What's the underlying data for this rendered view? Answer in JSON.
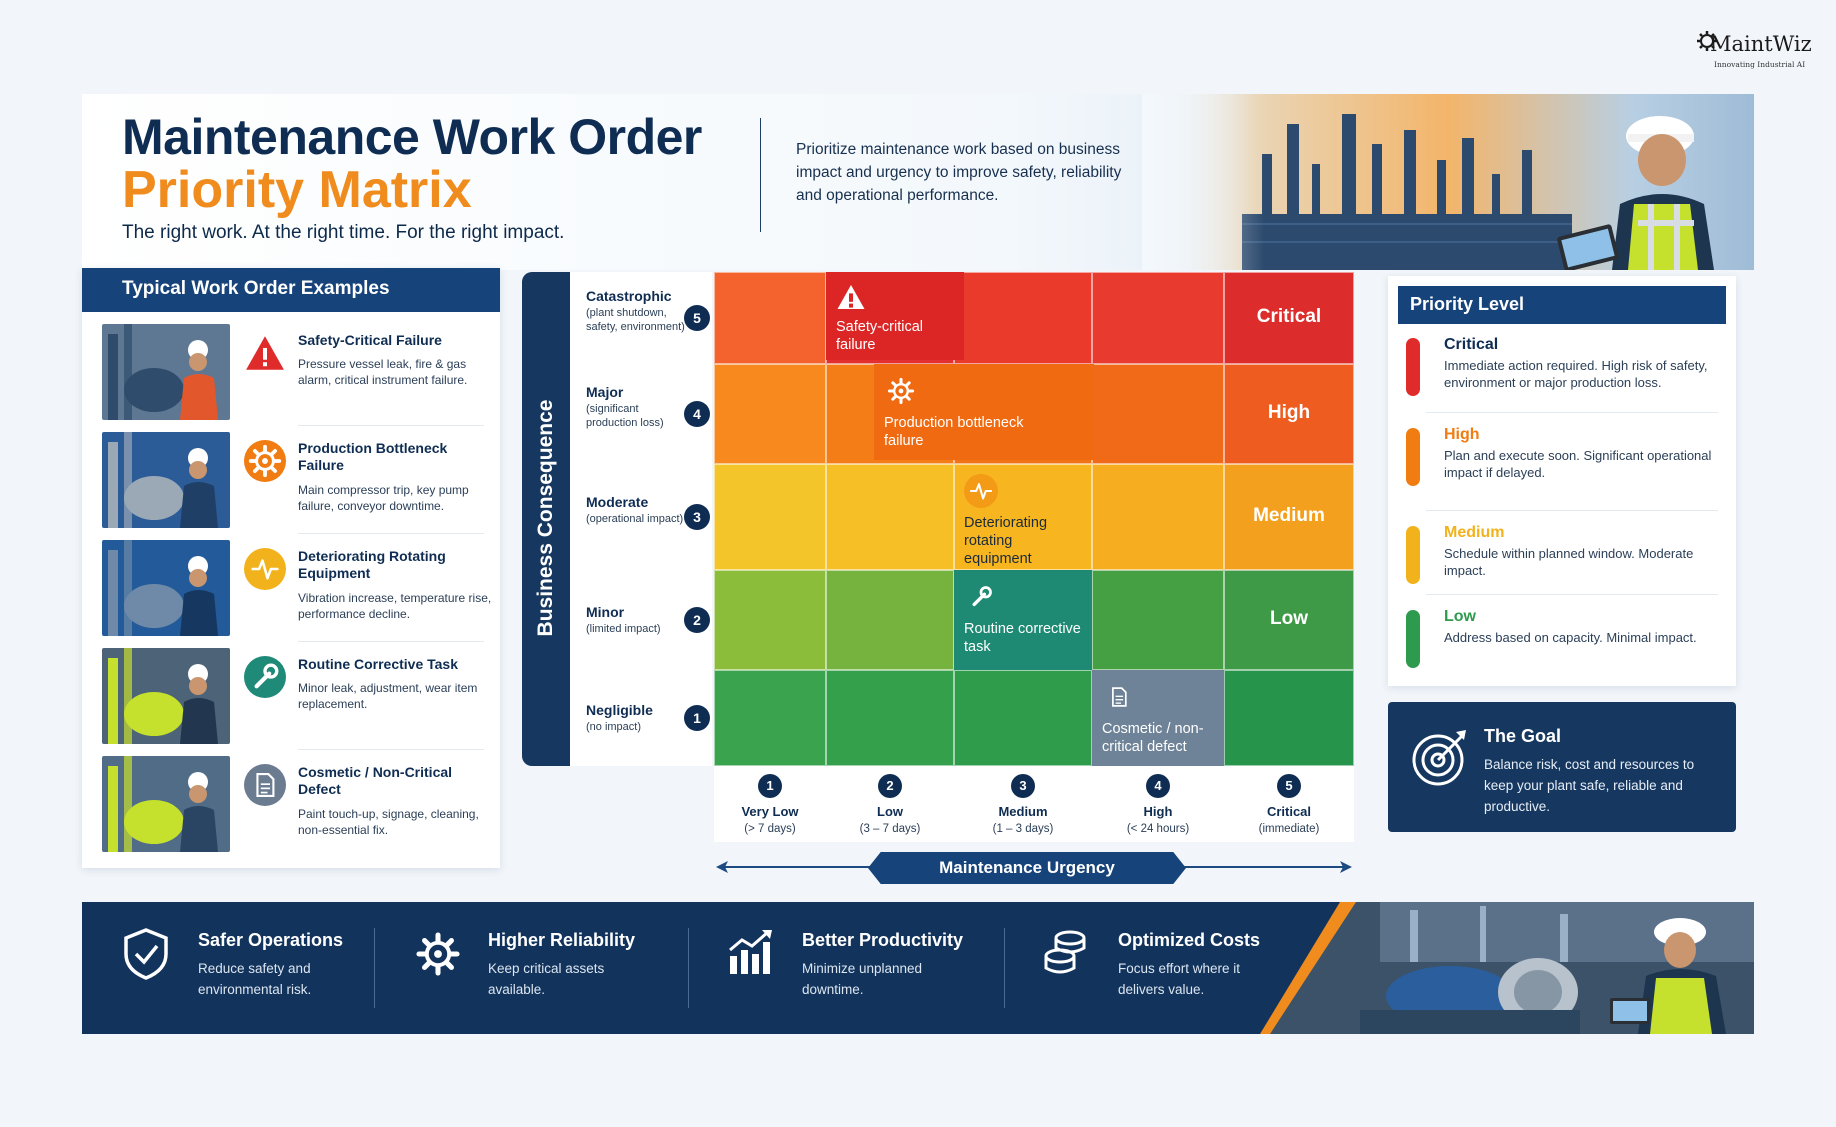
{
  "brand": {
    "name": "MaintWiz",
    "tagline": "Innovating Industrial AI"
  },
  "header": {
    "title_line1": "Maintenance Work Order",
    "title_line2": "Priority Matrix",
    "tagline": "The right work. At the right time. For the right impact.",
    "intro": "Prioritize maintenance work based on business impact and urgency to improve safety, reliability and operational performance."
  },
  "examples": {
    "heading": "Typical Work Order Examples",
    "items": [
      {
        "title": "Safety-Critical Failure",
        "desc": "Pressure vessel leak, fire & gas alarm, critical instrument failure.",
        "icon": "warning-icon",
        "color": "#e02b2b"
      },
      {
        "title": "Production Bottleneck Failure",
        "desc": "Main compressor trip, key pump failure, conveyor downtime.",
        "icon": "gear-icon",
        "color": "#f07c12"
      },
      {
        "title": "Deteriorating Rotating Equipment",
        "desc": "Vibration increase, temperature rise, performance decline.",
        "icon": "pulse-icon",
        "color": "#f2b21b"
      },
      {
        "title": "Routine Corrective Task",
        "desc": "Minor leak, adjustment, wear item replacement.",
        "icon": "wrench-icon",
        "color": "#1f8a78"
      },
      {
        "title": "Cosmetic / Non-Critical Defect",
        "desc": "Paint touch-up, signage, cleaning, non-essential fix.",
        "icon": "document-icon",
        "color": "#6b7b90"
      }
    ]
  },
  "matrix": {
    "y_axis_title": "Business Consequence",
    "x_axis_title": "Maintenance Urgency",
    "consequence_levels": [
      {
        "num": "5",
        "label": "Catastrophic",
        "sub": "(plant shutdown, safety, environment)"
      },
      {
        "num": "4",
        "label": "Major",
        "sub": "(significant production loss)"
      },
      {
        "num": "3",
        "label": "Moderate",
        "sub": "(operational impact)"
      },
      {
        "num": "2",
        "label": "Minor",
        "sub": "(limited impact)"
      },
      {
        "num": "1",
        "label": "Negligible",
        "sub": "(no impact)"
      }
    ],
    "urgency_levels": [
      {
        "num": "1",
        "label": "Very Low",
        "sub": "(> 7 days)"
      },
      {
        "num": "2",
        "label": "Low",
        "sub": "(3 – 7 days)"
      },
      {
        "num": "3",
        "label": "Medium",
        "sub": "(1 – 3 days)"
      },
      {
        "num": "4",
        "label": "High",
        "sub": "(< 24 hours)"
      },
      {
        "num": "5",
        "label": "Critical",
        "sub": "(immediate)"
      }
    ],
    "row_priority_labels": [
      "Critical",
      "High",
      "Medium",
      "Low"
    ],
    "cell_colors": [
      [
        "#f4632e",
        "#e32f2f",
        "#ea3a2c",
        "#e83a2e",
        "#dc2c2c"
      ],
      [
        "#f7891e",
        "#f57d17",
        "#f27314",
        "#f06a17",
        "#ef5c20"
      ],
      [
        "#f3c52a",
        "#f5bf25",
        "#f7b61f",
        "#f6ad1f",
        "#f4a01f"
      ],
      [
        "#8cbd3a",
        "#76b33e",
        "#5aa63e",
        "#45a044",
        "#3f9a47"
      ],
      [
        "#3aa34d",
        "#34a04c",
        "#2f9c4c",
        "#2c984c",
        "#27944c"
      ]
    ],
    "work_orders": [
      {
        "text": "Safety-critical failure",
        "icon": "warning-icon",
        "bg": "#dc2626"
      },
      {
        "text": "Production bottleneck failure",
        "icon": "gear-icon",
        "bg": "#f06a12"
      },
      {
        "text": "Deteriorating rotating equipment",
        "icon": "pulse-icon",
        "bg": "#f5b520"
      },
      {
        "text": "Routine corrective task",
        "icon": "wrench-icon",
        "bg": "#1e8a74"
      },
      {
        "text": "Cosmetic / non-critical defect",
        "icon": "document-icon",
        "bg": "#6f8398"
      }
    ]
  },
  "priority_legend": {
    "heading": "Priority Level",
    "items": [
      {
        "name": "Critical",
        "desc": "Immediate action required. High risk of safety, environment or major production loss.",
        "color": "#e02b2b"
      },
      {
        "name": "High",
        "desc": "Plan and execute soon. Significant operational impact if delayed.",
        "color": "#f07c12"
      },
      {
        "name": "Medium",
        "desc": "Schedule within planned window. Moderate impact.",
        "color": "#f2b21b"
      },
      {
        "name": "Low",
        "desc": "Address based on capacity. Minimal impact.",
        "color": "#2e9a4e"
      }
    ]
  },
  "goal": {
    "title": "The Goal",
    "desc": "Balance risk, cost and resources to keep your plant safe, reliable and productive.",
    "icon": "target-icon"
  },
  "benefits": [
    {
      "title": "Safer Operations",
      "desc": "Reduce safety and environmental risk.",
      "icon": "shield-check-icon"
    },
    {
      "title": "Higher Reliability",
      "desc": "Keep critical assets available.",
      "icon": "gear-icon"
    },
    {
      "title": "Better Productivity",
      "desc": "Minimize unplanned downtime.",
      "icon": "bar-chart-icon"
    },
    {
      "title": "Optimized Costs",
      "desc": "Focus effort where it delivers value.",
      "icon": "coins-icon"
    }
  ]
}
